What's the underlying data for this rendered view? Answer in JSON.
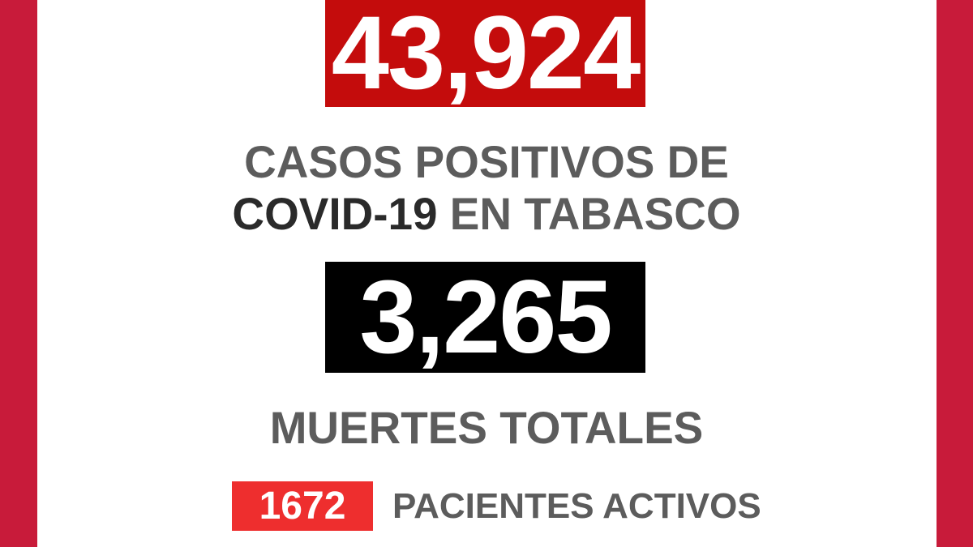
{
  "cases": {
    "value": "43,924"
  },
  "headline": {
    "line1": "CASOS POSITIVOS DE",
    "line2_strong": "COVID-19",
    "line2_rest": " EN TABASCO"
  },
  "deaths": {
    "value": "3,265",
    "label": "MUERTES TOTALES"
  },
  "active": {
    "value": "1672",
    "label": "PACIENTES ACTIVOS"
  },
  "colors": {
    "border": "#c81b3a",
    "cases_box": "#c40c0c",
    "deaths_box": "#000000",
    "active_box": "#ee2e2e",
    "text": "#5c5c5c"
  }
}
